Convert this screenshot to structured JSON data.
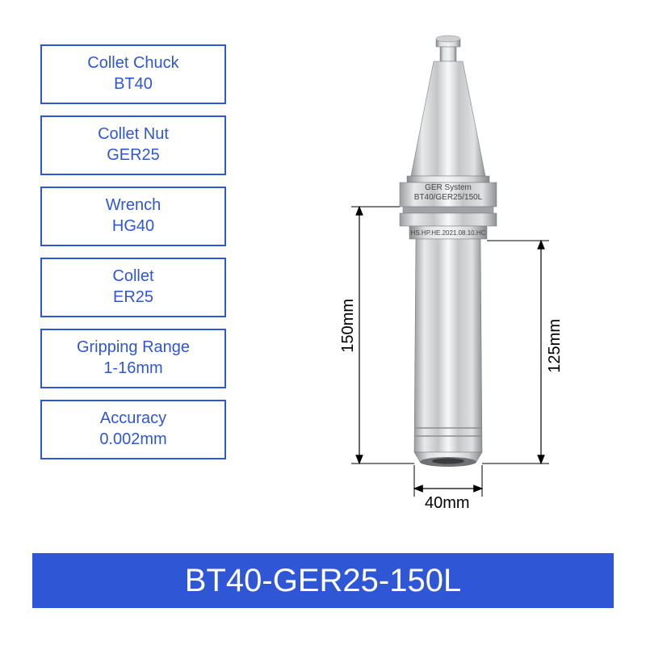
{
  "accent_color": "#2f56d5",
  "tool_fill": "#d8d9db",
  "tool_shadow": "#a9abae",
  "tool_highlight": "#f5f6f7",
  "specs": [
    {
      "label": "Collet Chuck",
      "value": "BT40"
    },
    {
      "label": "Collet Nut",
      "value": "GER25"
    },
    {
      "label": "Wrench",
      "value": "HG40"
    },
    {
      "label": "Collet",
      "value": "ER25"
    },
    {
      "label": "Gripping Range",
      "value": "1-16mm"
    },
    {
      "label": "Accuracy",
      "value": "0.002mm"
    }
  ],
  "dimensions": {
    "height_left": "150mm",
    "height_right": "125mm",
    "width_bottom": "40mm"
  },
  "engraving": {
    "line1": "GER System",
    "line2": "BT40/GER25/150L",
    "line3": "HS.HP.HE.2021.08.10.HC"
  },
  "title": "BT40-GER25-150L"
}
